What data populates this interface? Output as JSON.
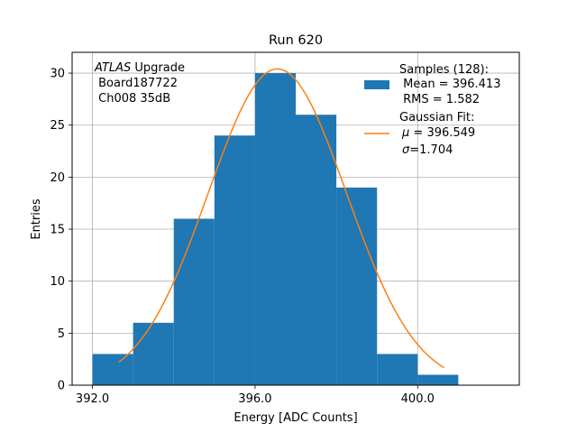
{
  "chart_data": {
    "type": "bar",
    "title": "Run 620",
    "xlabel": "Energy [ADC Counts]",
    "ylabel": "Entries",
    "xlim": [
      391.5,
      402.5
    ],
    "ylim": [
      0,
      32
    ],
    "grid": true,
    "xticks": [
      392.0,
      396.0,
      400.0
    ],
    "xtick_labels": [
      "392.0",
      "396.0",
      "400.0"
    ],
    "yticks": [
      0,
      5,
      10,
      15,
      20,
      25,
      30
    ],
    "ytick_labels": [
      "0",
      "5",
      "10",
      "15",
      "20",
      "25",
      "30"
    ],
    "bin_edges": [
      392,
      393,
      394,
      395,
      396,
      397,
      398,
      399,
      400,
      401
    ],
    "counts": [
      3,
      6,
      16,
      24,
      30,
      26,
      19,
      3,
      1
    ],
    "bar_color": "#1f77b4",
    "fit": {
      "type": "gaussian",
      "mu": 396.549,
      "sigma": 1.704,
      "amplitude": 30.4,
      "x_range": [
        392.65,
        400.65
      ],
      "color": "#ff7f0e"
    },
    "annotation": {
      "italic": "ATLAS",
      "line1_rest": " Upgrade",
      "line2": " Board187722",
      "line3": " Ch008 35dB"
    },
    "legend": {
      "placement": "top-right",
      "samples_title": "Samples (128):",
      "samples_mean": " Mean = 396.413",
      "samples_rms": " RMS = 1.582",
      "fit_title": "Gaussian Fit:",
      "fit_mu_symbol": "μ",
      "fit_mu_text": " = 396.549",
      "fit_sigma_symbol": "σ",
      "fit_sigma_text": "=1.704"
    }
  }
}
